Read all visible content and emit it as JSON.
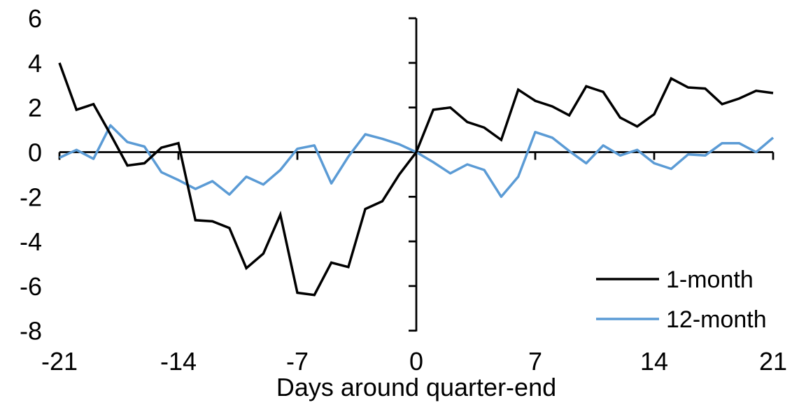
{
  "chart_data": {
    "type": "line",
    "title": "",
    "xlabel": "Days around quarter-end",
    "ylabel": "",
    "xlim": [
      -21,
      21
    ],
    "ylim": [
      -8,
      6
    ],
    "grid": false,
    "legend_position": "inside-bottom-right",
    "x_ticks": [
      -21,
      -14,
      -7,
      0,
      7,
      14,
      21
    ],
    "y_ticks": [
      6,
      4,
      2,
      0,
      -2,
      -4,
      -6,
      -8
    ],
    "axis_color": "#000000",
    "x": [
      -21,
      -20,
      -19,
      -18,
      -17,
      -16,
      -15,
      -14,
      -13,
      -12,
      -11,
      -10,
      -9,
      -8,
      -7,
      -6,
      -5,
      -4,
      -3,
      -2,
      -1,
      0,
      1,
      2,
      3,
      4,
      5,
      6,
      7,
      8,
      9,
      10,
      11,
      12,
      13,
      14,
      15,
      16,
      17,
      18,
      19,
      20,
      21
    ],
    "series": [
      {
        "name": "1-month",
        "color": "#000000",
        "values": [
          4.0,
          1.9,
          2.15,
          0.8,
          -0.6,
          -0.5,
          0.2,
          0.4,
          -3.05,
          -3.1,
          -3.4,
          -5.2,
          -4.55,
          -2.8,
          -6.3,
          -6.4,
          -4.95,
          -5.15,
          -2.55,
          -2.2,
          -1.0,
          0.0,
          1.9,
          2.0,
          1.35,
          1.1,
          0.55,
          2.8,
          2.3,
          2.05,
          1.65,
          2.95,
          2.7,
          1.55,
          1.15,
          1.7,
          3.3,
          2.9,
          2.85,
          2.15,
          2.4,
          2.75,
          2.65
        ]
      },
      {
        "name": "12-month",
        "color": "#5B9BD5",
        "values": [
          -0.25,
          0.1,
          -0.3,
          1.2,
          0.45,
          0.25,
          -0.9,
          -1.25,
          -1.65,
          -1.3,
          -1.9,
          -1.1,
          -1.45,
          -0.8,
          0.15,
          0.3,
          -1.4,
          -0.2,
          0.8,
          0.6,
          0.35,
          0.0,
          -0.45,
          -0.95,
          -0.55,
          -0.8,
          -2.0,
          -1.1,
          0.9,
          0.65,
          0.05,
          -0.5,
          0.3,
          -0.15,
          0.1,
          -0.5,
          -0.75,
          -0.1,
          -0.15,
          0.4,
          0.4,
          0.0,
          0.65
        ]
      }
    ]
  }
}
